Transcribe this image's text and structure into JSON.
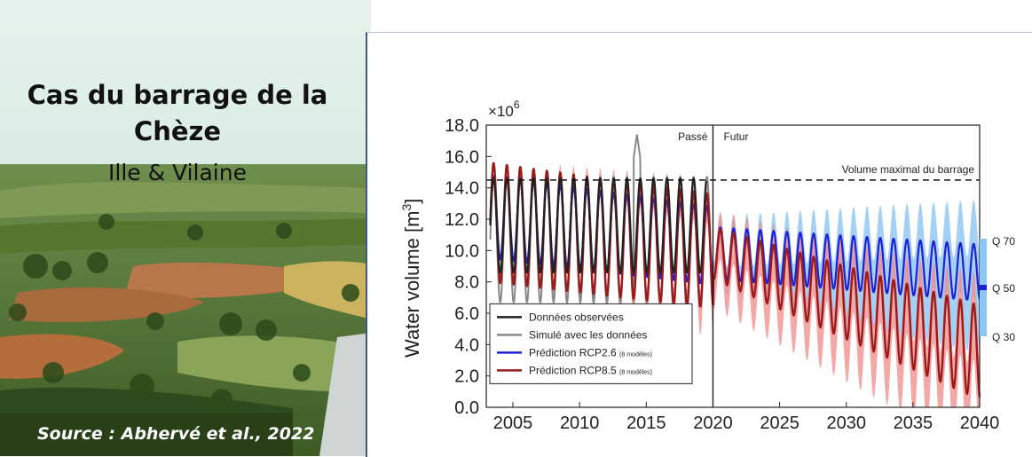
{
  "photo": {
    "title_line1": "Cas du barrage de la",
    "title_line2": "Chèze",
    "subtitle": "Ille & Vilaine",
    "source": "Source : Abhervé et al., 2022"
  },
  "chart_data": {
    "type": "line",
    "ylabel": "Water volume [m3]",
    "ylabel_main": "Water volume [m",
    "ylabel_sup": "3",
    "ylabel_end": "]",
    "y_multiplier_base": "×10",
    "y_multiplier_exp": "6",
    "ylim": [
      0,
      18
    ],
    "xlim": [
      2003,
      2040
    ],
    "yticks": [
      "0.0",
      "2.0",
      "4.0",
      "6.0",
      "8.0",
      "10.0",
      "12.0",
      "14.0",
      "16.0",
      "18.0"
    ],
    "xticks": [
      "2005",
      "2010",
      "2015",
      "2020",
      "2025",
      "2030",
      "2035",
      "2040"
    ],
    "split_year": 2020,
    "region_past": "Passé",
    "region_future": "Futur",
    "reservoir_max_value": 14.5,
    "reservoir_max_label": "Volume maximal du barrage",
    "legend": [
      {
        "label": "Données observées",
        "color": "#222222"
      },
      {
        "label": "Simulé avec les données",
        "color": "#888888"
      },
      {
        "label": "Prédiction RCP2.6",
        "note": "(8 modèles)",
        "color": "#1f1fd6"
      },
      {
        "label": "Prédiction RCP8.5",
        "note": "(8 modèles)",
        "color": "#9b1a1a"
      }
    ],
    "quantile_labels": [
      "Q 70",
      "Q 50",
      "Q 30"
    ],
    "colors": {
      "band_rcp26": "#8cc4f2",
      "band_rcp85": "#f08a8a",
      "rcp26": "#1f1fd6",
      "rcp85": "#9b1a1a",
      "observed": "#222222",
      "simulated": "#888888"
    },
    "series": [
      {
        "name": "Données observées",
        "x_start": 2003.3,
        "x_end": 2019.5,
        "cycle_years": 1,
        "high": 14.5,
        "low": 8.5
      },
      {
        "name": "Simulé avec les données",
        "x_start": 2003.3,
        "x_end": 2019.8,
        "cycle_years": 1,
        "high": 14.5,
        "low": 6.5,
        "peak_2014": 17.4
      },
      {
        "name": "Prédiction RCP2.6",
        "x_start": 2003.3,
        "x_end": 2040,
        "cycle_years": 1,
        "high_start": 14.8,
        "low_start": 9.5,
        "high_end": 10.4,
        "low_end": 6.8
      },
      {
        "name": "Prédiction RCP8.5",
        "x_start": 2003.3,
        "x_end": 2040,
        "cycle_years": 1,
        "high_start": 15.6,
        "low_start": 8.0,
        "high_end": 6.5,
        "low_end": 0.5
      }
    ]
  }
}
